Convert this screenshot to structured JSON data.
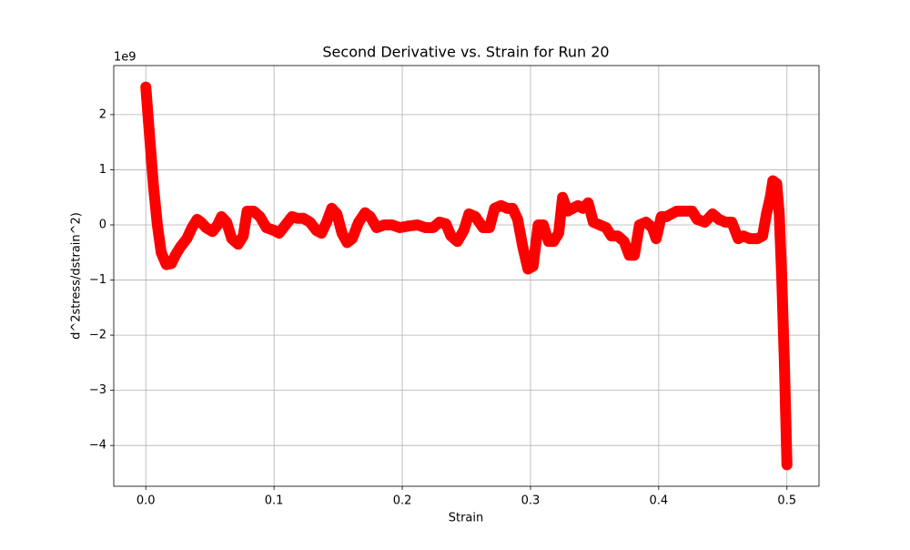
{
  "chart_data": {
    "type": "line",
    "title": "Second Derivative vs. Strain for Run 20",
    "x_label": "Strain",
    "y_label": "d^2stress/dstrain^2)",
    "y_offset_label": "1e9",
    "x": [
      0.0,
      0.003,
      0.006,
      0.009,
      0.012,
      0.016,
      0.02,
      0.023,
      0.027,
      0.032,
      0.036,
      0.04,
      0.043,
      0.047,
      0.052,
      0.056,
      0.059,
      0.063,
      0.067,
      0.072,
      0.076,
      0.079,
      0.084,
      0.089,
      0.094,
      0.1,
      0.104,
      0.109,
      0.114,
      0.118,
      0.123,
      0.128,
      0.133,
      0.137,
      0.141,
      0.145,
      0.149,
      0.153,
      0.157,
      0.161,
      0.166,
      0.171,
      0.175,
      0.18,
      0.186,
      0.192,
      0.198,
      0.205,
      0.212,
      0.218,
      0.224,
      0.229,
      0.234,
      0.238,
      0.243,
      0.248,
      0.252,
      0.257,
      0.263,
      0.268,
      0.272,
      0.277,
      0.282,
      0.286,
      0.29,
      0.294,
      0.298,
      0.302,
      0.306,
      0.31,
      0.314,
      0.318,
      0.322,
      0.325,
      0.329,
      0.333,
      0.337,
      0.341,
      0.345,
      0.349,
      0.354,
      0.359,
      0.363,
      0.368,
      0.373,
      0.377,
      0.381,
      0.385,
      0.39,
      0.395,
      0.398,
      0.402,
      0.406,
      0.41,
      0.414,
      0.42,
      0.426,
      0.43,
      0.436,
      0.442,
      0.447,
      0.452,
      0.457,
      0.462,
      0.466,
      0.471,
      0.477,
      0.481,
      0.484,
      0.487,
      0.489,
      0.492,
      0.494,
      0.496,
      0.498,
      0.5
    ],
    "series": [
      {
        "color": "#ff0000",
        "values": [
          2.5,
          1.6,
          0.7,
          0.0,
          -0.5,
          -0.72,
          -0.7,
          -0.55,
          -0.4,
          -0.25,
          -0.05,
          0.1,
          0.05,
          -0.05,
          -0.12,
          0.0,
          0.15,
          0.05,
          -0.25,
          -0.35,
          -0.2,
          0.25,
          0.25,
          0.15,
          -0.05,
          -0.1,
          -0.15,
          0.0,
          0.15,
          0.12,
          0.12,
          0.05,
          -0.1,
          -0.15,
          0.05,
          0.3,
          0.2,
          -0.15,
          -0.32,
          -0.25,
          0.05,
          0.22,
          0.15,
          -0.05,
          0.0,
          0.0,
          -0.05,
          -0.02,
          0.0,
          -0.05,
          -0.05,
          0.05,
          0.02,
          -0.2,
          -0.3,
          -0.1,
          0.2,
          0.15,
          -0.05,
          -0.05,
          0.3,
          0.35,
          0.3,
          0.3,
          0.1,
          -0.4,
          -0.8,
          -0.75,
          0.0,
          0.0,
          -0.3,
          -0.3,
          -0.15,
          0.5,
          0.25,
          0.3,
          0.35,
          0.3,
          0.4,
          0.05,
          0.0,
          -0.05,
          -0.2,
          -0.2,
          -0.3,
          -0.55,
          -0.55,
          0.0,
          0.05,
          -0.05,
          -0.25,
          0.15,
          0.15,
          0.2,
          0.25,
          0.25,
          0.25,
          0.1,
          0.05,
          0.2,
          0.1,
          0.05,
          0.05,
          -0.25,
          -0.2,
          -0.25,
          -0.25,
          -0.2,
          0.2,
          0.5,
          0.8,
          0.75,
          0.2,
          -1.0,
          -2.5,
          -4.35
        ]
      }
    ],
    "xlim": [
      -0.025,
      0.525
    ],
    "ylim": [
      -4.74,
      2.89
    ],
    "xticks": [
      {
        "value": 0,
        "label": "0.0"
      },
      0.1,
      0.2,
      0.3,
      0.4,
      0.5
    ],
    "yticks": [
      {
        "value": -4,
        "label": "−4"
      },
      {
        "value": -3,
        "label": "−3"
      },
      {
        "value": -2,
        "label": "−2"
      },
      {
        "value": -1,
        "label": "−1"
      },
      0,
      1,
      2
    ],
    "grid": true
  }
}
